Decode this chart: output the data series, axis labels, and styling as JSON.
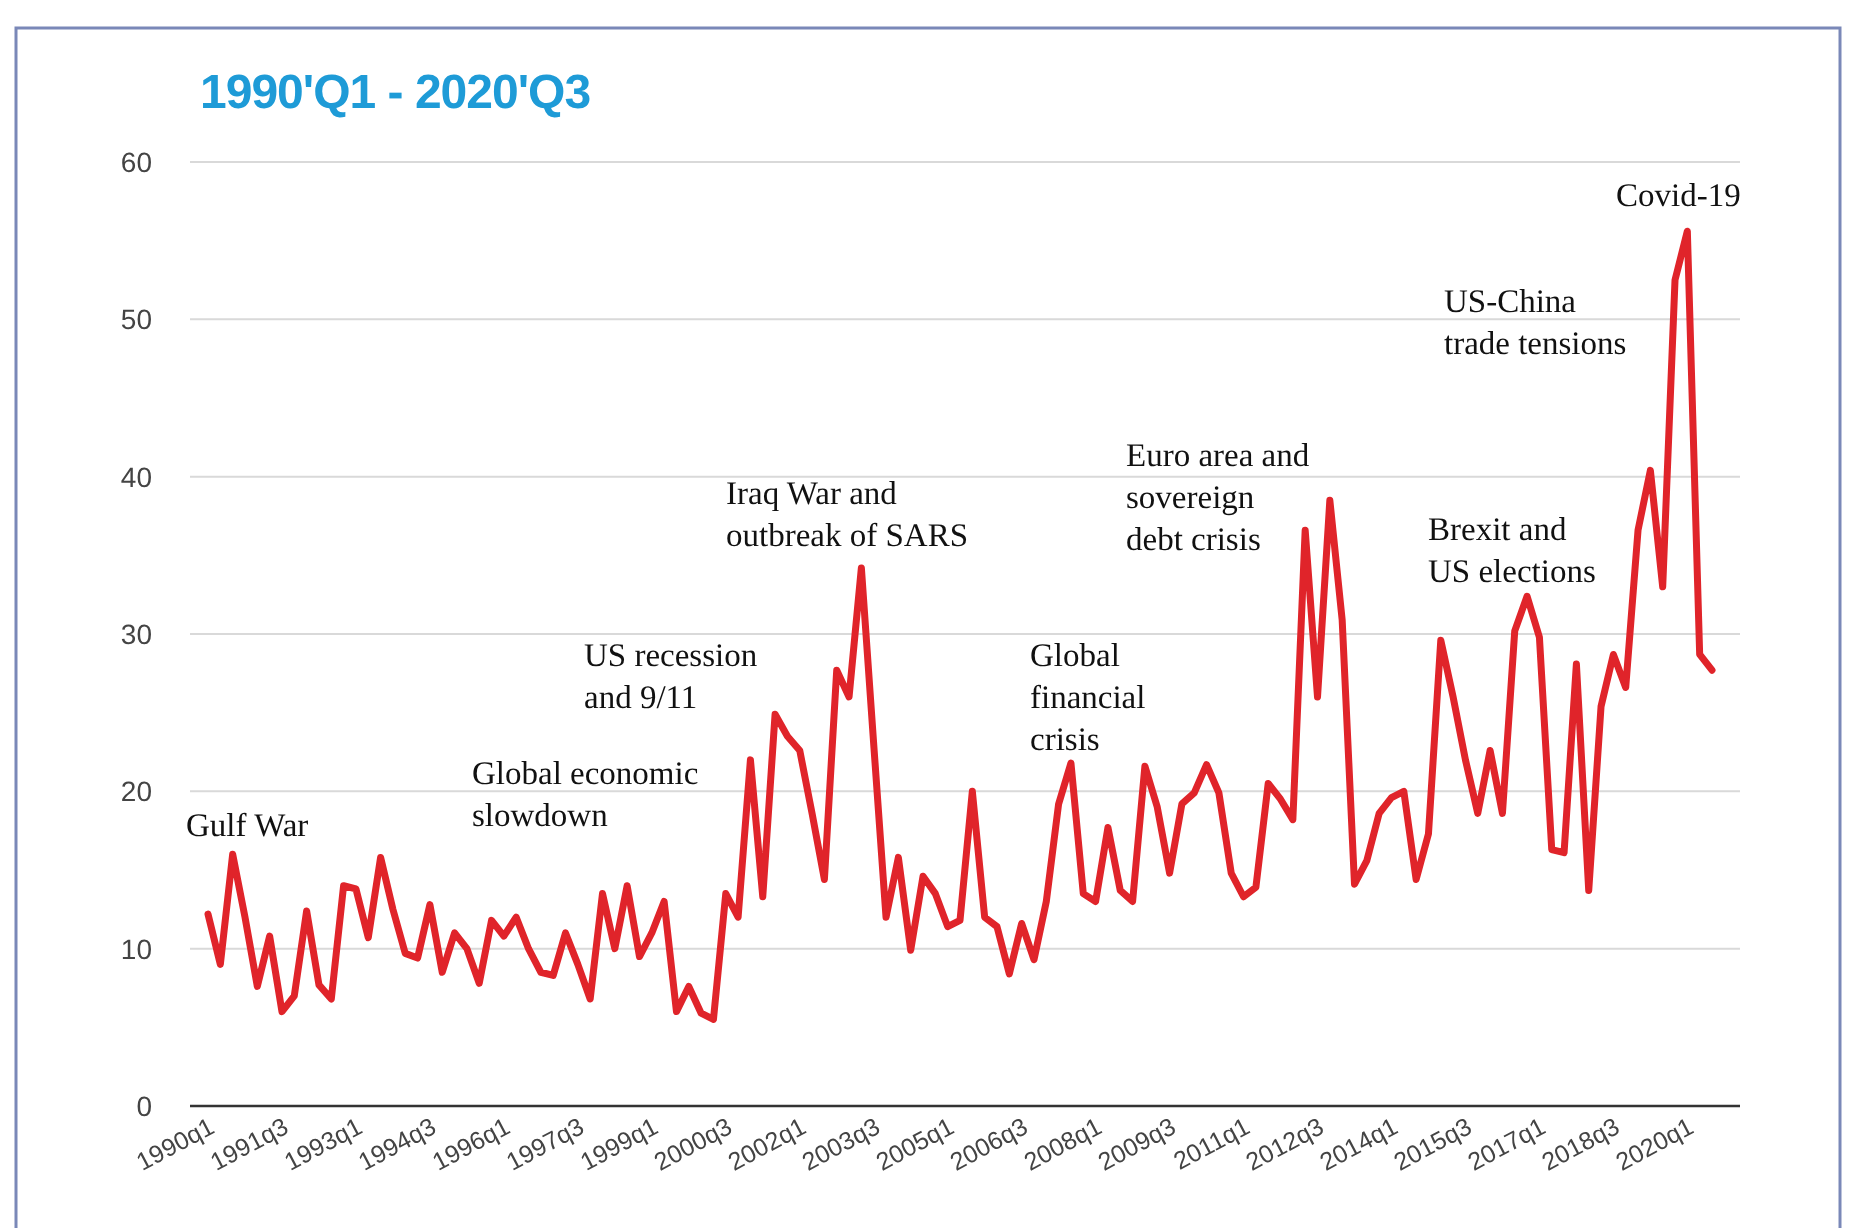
{
  "chart_data": {
    "type": "line",
    "title": "1990'Q1 - 2020'Q3",
    "categories": [
      "1990q1",
      null,
      null,
      null,
      null,
      null,
      "1991q3",
      null,
      null,
      null,
      null,
      null,
      "1993q1",
      null,
      null,
      null,
      null,
      null,
      "1994q3",
      null,
      null,
      null,
      null,
      null,
      "1996q1",
      null,
      null,
      null,
      null,
      null,
      "1997q3",
      null,
      null,
      null,
      null,
      null,
      "1999q1",
      null,
      null,
      null,
      null,
      null,
      "2000q3",
      null,
      null,
      null,
      null,
      null,
      "2002q1",
      null,
      null,
      null,
      null,
      null,
      "2003q3",
      null,
      null,
      null,
      null,
      null,
      "2005q1",
      null,
      null,
      null,
      null,
      null,
      "2006q3",
      null,
      null,
      null,
      null,
      null,
      "2008q1",
      null,
      null,
      null,
      null,
      null,
      "2009q3",
      null,
      null,
      null,
      null,
      null,
      "2011q1",
      null,
      null,
      null,
      null,
      null,
      "2012q3",
      null,
      null,
      null,
      null,
      null,
      "2014q1",
      null,
      null,
      null,
      null,
      null,
      "2015q3",
      null,
      null,
      null,
      null,
      null,
      "2017q1",
      null,
      null,
      null,
      null,
      null,
      "2018q3",
      null,
      null,
      null,
      null,
      null,
      "2020q1",
      null,
      null
    ],
    "series": [
      {
        "color": "#e0242a",
        "values": [
          12.2,
          9,
          16,
          12,
          7.6,
          10.8,
          6,
          7,
          12.4,
          7.7,
          6.8,
          14,
          13.8,
          10.7,
          15.8,
          12.5,
          9.7,
          9.4,
          12.8,
          8.5,
          11,
          10,
          7.8,
          11.8,
          10.8,
          12,
          10,
          8.5,
          8.3,
          11,
          9,
          6.8,
          13.5,
          10,
          14,
          9.5,
          11,
          13,
          6,
          7.6,
          5.9,
          5.5,
          13.5,
          12,
          22,
          13.3,
          24.9,
          23.5,
          22.6,
          18.6,
          14.4,
          27.7,
          26,
          34.2,
          23,
          12,
          15.8,
          9.9,
          14.6,
          13.5,
          11.4,
          11.8,
          20,
          12,
          11.4,
          8.4,
          11.6,
          9.3,
          13,
          19.2,
          21.8,
          13.5,
          13,
          17.7,
          13.7,
          13,
          21.6,
          19,
          14.8,
          19.2,
          19.9,
          21.7,
          19.9,
          14.8,
          13.3,
          13.9,
          20.5,
          19.5,
          18.2,
          36.6,
          26,
          38.5,
          30.9,
          14.1,
          15.6,
          18.6,
          19.6,
          20,
          14.4,
          17.3,
          29.6,
          26,
          22,
          18.6,
          22.6,
          18.6,
          30.2,
          32.4,
          29.8,
          16.3,
          16.1,
          28.1,
          13.7,
          25.4,
          28.7,
          26.6,
          36.6,
          40.4,
          33,
          52.5,
          55.6,
          28.7,
          27.7
        ]
      }
    ],
    "ylim": [
      0,
      60
    ],
    "yticks": [
      0,
      10,
      20,
      30,
      40,
      50,
      60
    ],
    "grid": "y",
    "marker": "none",
    "line_style": "solid",
    "annotations": [
      "Gulf War",
      "Global economic slowdown",
      "US recession and 9/11",
      "Iraq War and outbreak of SARS",
      "Global financial crisis",
      "Euro area and sovereign debt crisis",
      "Brexit and US elections",
      "US-China trade tensions",
      "Covid-19"
    ]
  }
}
